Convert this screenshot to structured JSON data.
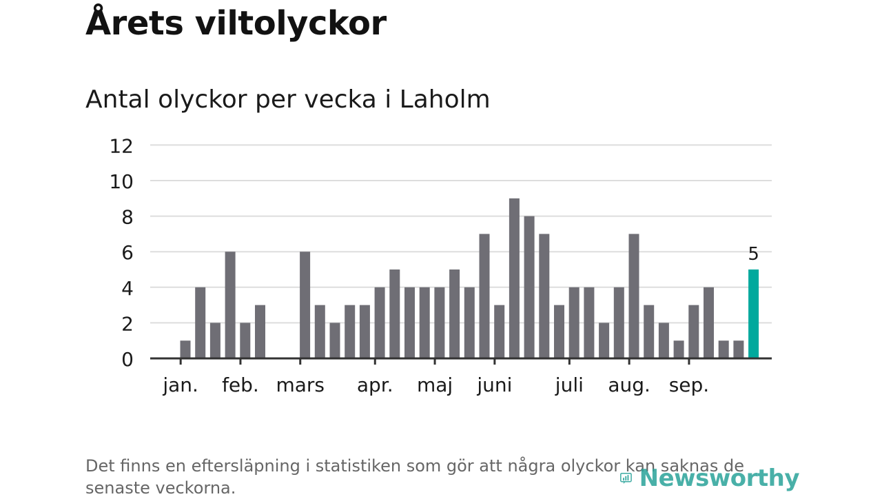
{
  "title": "Årets viltolyckor",
  "subtitle": "Antal olyckor per vecka i Laholm",
  "footnote": "Det finns en eftersläpning i statistiken som gör att några olyckor kan saknas de senaste veckorna.",
  "logo": {
    "text": "Newsworthy",
    "icon": "newsworthy-chart-icon"
  },
  "colors": {
    "bar": "#6f6e75",
    "highlight": "#00a99d",
    "grid": "#dddddd",
    "axis": "#333333",
    "text": "#1a1a1a"
  },
  "chart_data": {
    "type": "bar",
    "title": "Antal olyckor per vecka i Laholm",
    "xlabel": "",
    "ylabel": "",
    "ylim": [
      0,
      12
    ],
    "yticks": [
      0,
      2,
      4,
      6,
      8,
      10,
      12
    ],
    "grid": true,
    "weeks": [
      1,
      2,
      3,
      4,
      5,
      6,
      7,
      8,
      9,
      10,
      11,
      12,
      13,
      14,
      15,
      16,
      17,
      18,
      19,
      20,
      21,
      22,
      23,
      24,
      25,
      26,
      27,
      28,
      29,
      30,
      31,
      32,
      33,
      34,
      35,
      36,
      37,
      38,
      39,
      40
    ],
    "values": [
      0,
      0,
      1,
      4,
      2,
      6,
      2,
      3,
      0,
      0,
      6,
      3,
      2,
      3,
      3,
      4,
      5,
      4,
      4,
      4,
      5,
      4,
      7,
      3,
      9,
      8,
      7,
      3,
      4,
      4,
      2,
      4,
      7,
      3,
      2,
      1,
      3,
      4,
      1,
      1
    ],
    "highlight": {
      "week": 41,
      "value": 5,
      "label": "5"
    },
    "month_labels": [
      {
        "label": "jan.",
        "week": 3
      },
      {
        "label": "feb.",
        "week": 7
      },
      {
        "label": "mars",
        "week": 11
      },
      {
        "label": "apr.",
        "week": 16
      },
      {
        "label": "maj",
        "week": 20
      },
      {
        "label": "juni",
        "week": 24
      },
      {
        "label": "juli",
        "week": 29
      },
      {
        "label": "aug.",
        "week": 33
      },
      {
        "label": "sep.",
        "week": 37
      }
    ]
  }
}
